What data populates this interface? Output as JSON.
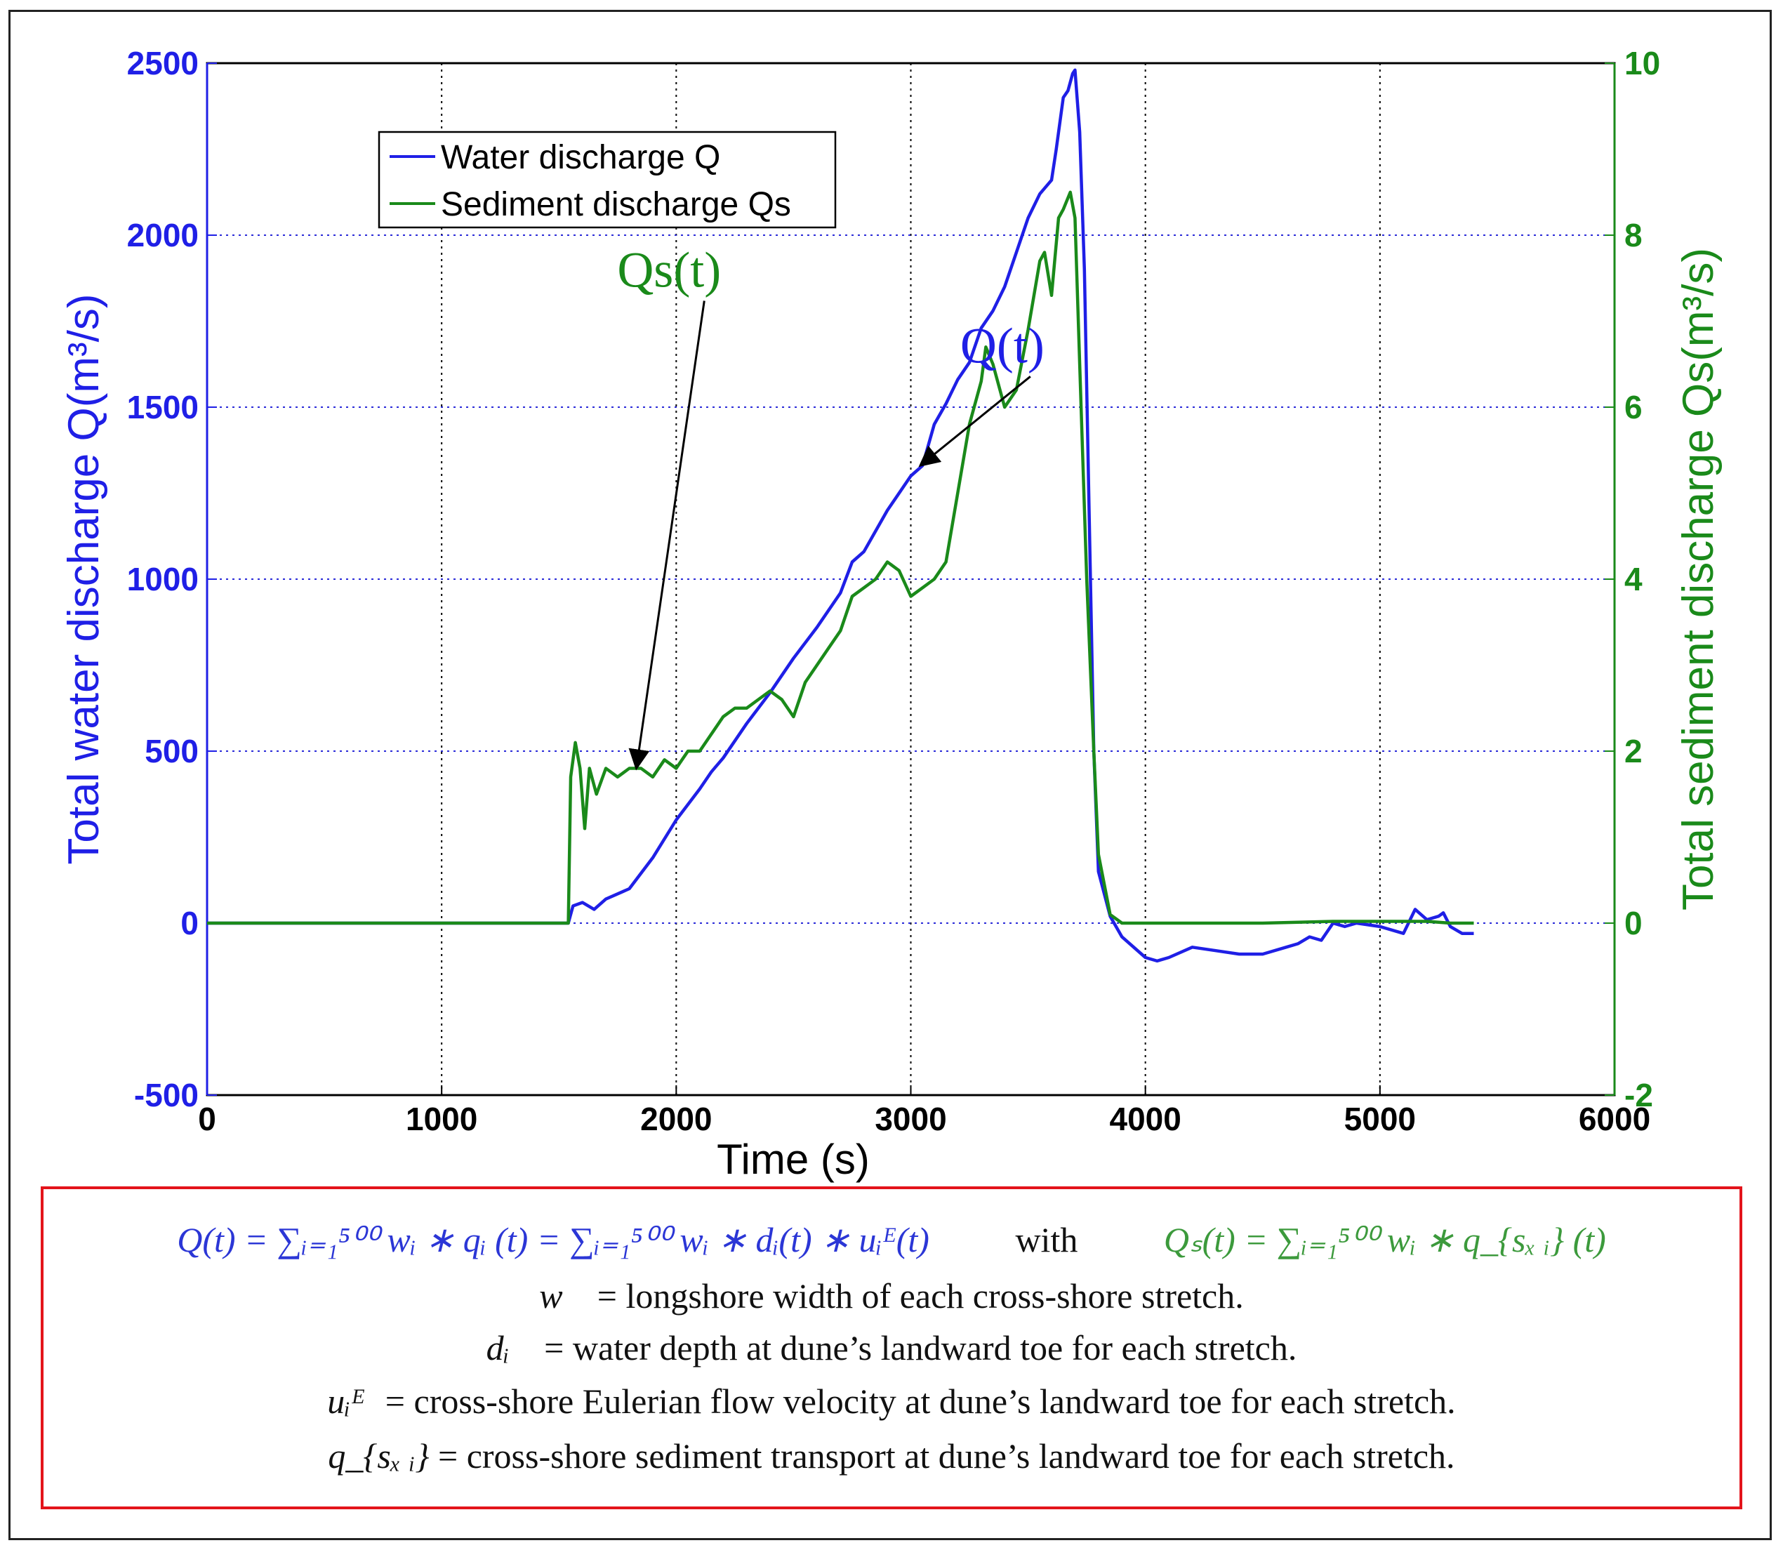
{
  "chart_data": {
    "type": "line",
    "xlabel": "Time (s)",
    "ylabel_left": "Total water discharge Q(m³/s)",
    "ylabel_right": "Total sediment discharge Qs(m³/s)",
    "xlim": [
      0,
      6000
    ],
    "ylim_left": [
      -500,
      2500
    ],
    "ylim_right": [
      -2,
      10
    ],
    "x_ticks": [
      "0",
      "1000",
      "2000",
      "3000",
      "4000",
      "5000",
      "6000"
    ],
    "y_left_ticks": [
      "-500",
      "0",
      "500",
      "1000",
      "1500",
      "2000",
      "2500"
    ],
    "y_right_ticks": [
      "-2",
      "0",
      "2",
      "4",
      "6",
      "8",
      "10"
    ],
    "grid": true,
    "legend_position": "top-left",
    "legend": [
      "Water discharge Q",
      "Sediment discharge Qs"
    ],
    "colors": {
      "water": "#1f1fe6",
      "sediment": "#1a8a1a",
      "left_axis": "#1f1fe6",
      "right_axis": "#1a8a1a"
    },
    "series": [
      {
        "name": "Water discharge Q",
        "axis": "left",
        "x": [
          0,
          1540,
          1560,
          1600,
          1650,
          1700,
          1800,
          1900,
          2000,
          2100,
          2150,
          2200,
          2300,
          2400,
          2500,
          2600,
          2700,
          2750,
          2800,
          2900,
          3000,
          3050,
          3100,
          3150,
          3200,
          3250,
          3300,
          3350,
          3400,
          3450,
          3500,
          3550,
          3600,
          3620,
          3650,
          3670,
          3690,
          3700,
          3720,
          3740,
          3760,
          3780,
          3800,
          3850,
          3900,
          4000,
          4050,
          4100,
          4200,
          4300,
          4400,
          4500,
          4600,
          4650,
          4700,
          4750,
          4800,
          4850,
          4900,
          5000,
          5100,
          5150,
          5200,
          5250,
          5270,
          5300,
          5350,
          5400
        ],
        "values": [
          0,
          0,
          50,
          60,
          40,
          70,
          100,
          190,
          300,
          390,
          440,
          480,
          580,
          670,
          770,
          860,
          960,
          1050,
          1080,
          1200,
          1300,
          1330,
          1450,
          1510,
          1580,
          1630,
          1730,
          1780,
          1850,
          1950,
          2050,
          2120,
          2160,
          2250,
          2400,
          2420,
          2470,
          2480,
          2300,
          1900,
          1200,
          500,
          150,
          20,
          -40,
          -100,
          -110,
          -100,
          -70,
          -80,
          -90,
          -90,
          -70,
          -60,
          -40,
          -50,
          0,
          -10,
          0,
          -10,
          -30,
          40,
          10,
          20,
          30,
          -10,
          -30,
          -30
        ]
      },
      {
        "name": "Sediment discharge Qs",
        "axis": "right",
        "x": [
          0,
          1540,
          1550,
          1570,
          1590,
          1610,
          1630,
          1660,
          1700,
          1750,
          1800,
          1850,
          1900,
          1950,
          2000,
          2050,
          2100,
          2150,
          2200,
          2250,
          2300,
          2350,
          2400,
          2450,
          2500,
          2550,
          2600,
          2650,
          2700,
          2750,
          2800,
          2850,
          2900,
          2950,
          3000,
          3050,
          3100,
          3150,
          3200,
          3250,
          3300,
          3320,
          3350,
          3400,
          3450,
          3500,
          3550,
          3570,
          3600,
          3630,
          3650,
          3680,
          3700,
          3720,
          3750,
          3780,
          3800,
          3850,
          3900,
          4000,
          4500,
          4800,
          5000,
          5200,
          5300,
          5400
        ],
        "values": [
          0,
          0,
          1.7,
          2.1,
          1.8,
          1.1,
          1.8,
          1.5,
          1.8,
          1.7,
          1.8,
          1.8,
          1.7,
          1.9,
          1.8,
          2.0,
          2.0,
          2.2,
          2.4,
          2.5,
          2.5,
          2.6,
          2.7,
          2.6,
          2.4,
          2.8,
          3.0,
          3.2,
          3.4,
          3.8,
          3.9,
          4.0,
          4.2,
          4.1,
          3.8,
          3.9,
          4.0,
          4.2,
          5.0,
          5.8,
          6.3,
          6.7,
          6.5,
          6.0,
          6.2,
          6.9,
          7.7,
          7.8,
          7.3,
          8.2,
          8.3,
          8.5,
          8.2,
          6.5,
          4.0,
          2.0,
          0.8,
          0.1,
          0.0,
          0.0,
          0.0,
          0.02,
          0.02,
          0.02,
          0.0,
          0.0
        ]
      }
    ],
    "annotations": [
      {
        "text": "Q(t)",
        "color": "#1f1fe6",
        "label_at": [
          3390,
          1630
        ],
        "arrow_to": [
          3040,
          1330
        ],
        "axis": "left"
      },
      {
        "text": "Qs(t)",
        "color": "#1a8a1a",
        "label_at": [
          1970,
          7.4
        ],
        "arrow_to": [
          1830,
          1.8
        ],
        "axis": "right"
      }
    ]
  },
  "formula": {
    "q_def": "Q(t) = ∑ᵢ₌₁⁵⁰⁰ wᵢ ∗ qᵢ (t) = ∑ᵢ₌₁⁵⁰⁰ wᵢ ∗ dᵢ(t) ∗ uᵢᴱ(t)",
    "with": "with",
    "qs_def": "Qₛ(t) = ∑ᵢ₌₁⁵⁰⁰ wᵢ ∗ q_{sₓ ᵢ} (t)",
    "w_sym": "w",
    "w_desc": "= longshore width of each cross-shore stretch.",
    "d_sym": "dᵢ",
    "d_desc": "= water depth at dune’s landward toe for each stretch.",
    "u_sym": "uᵢᴱ",
    "u_desc": "= cross-shore Eulerian flow velocity at dune’s landward toe for each stretch.",
    "qs_sym": "q_{sₓ ᵢ}",
    "qs_desc": "= cross-shore sediment transport at dune’s landward toe for each stretch."
  }
}
